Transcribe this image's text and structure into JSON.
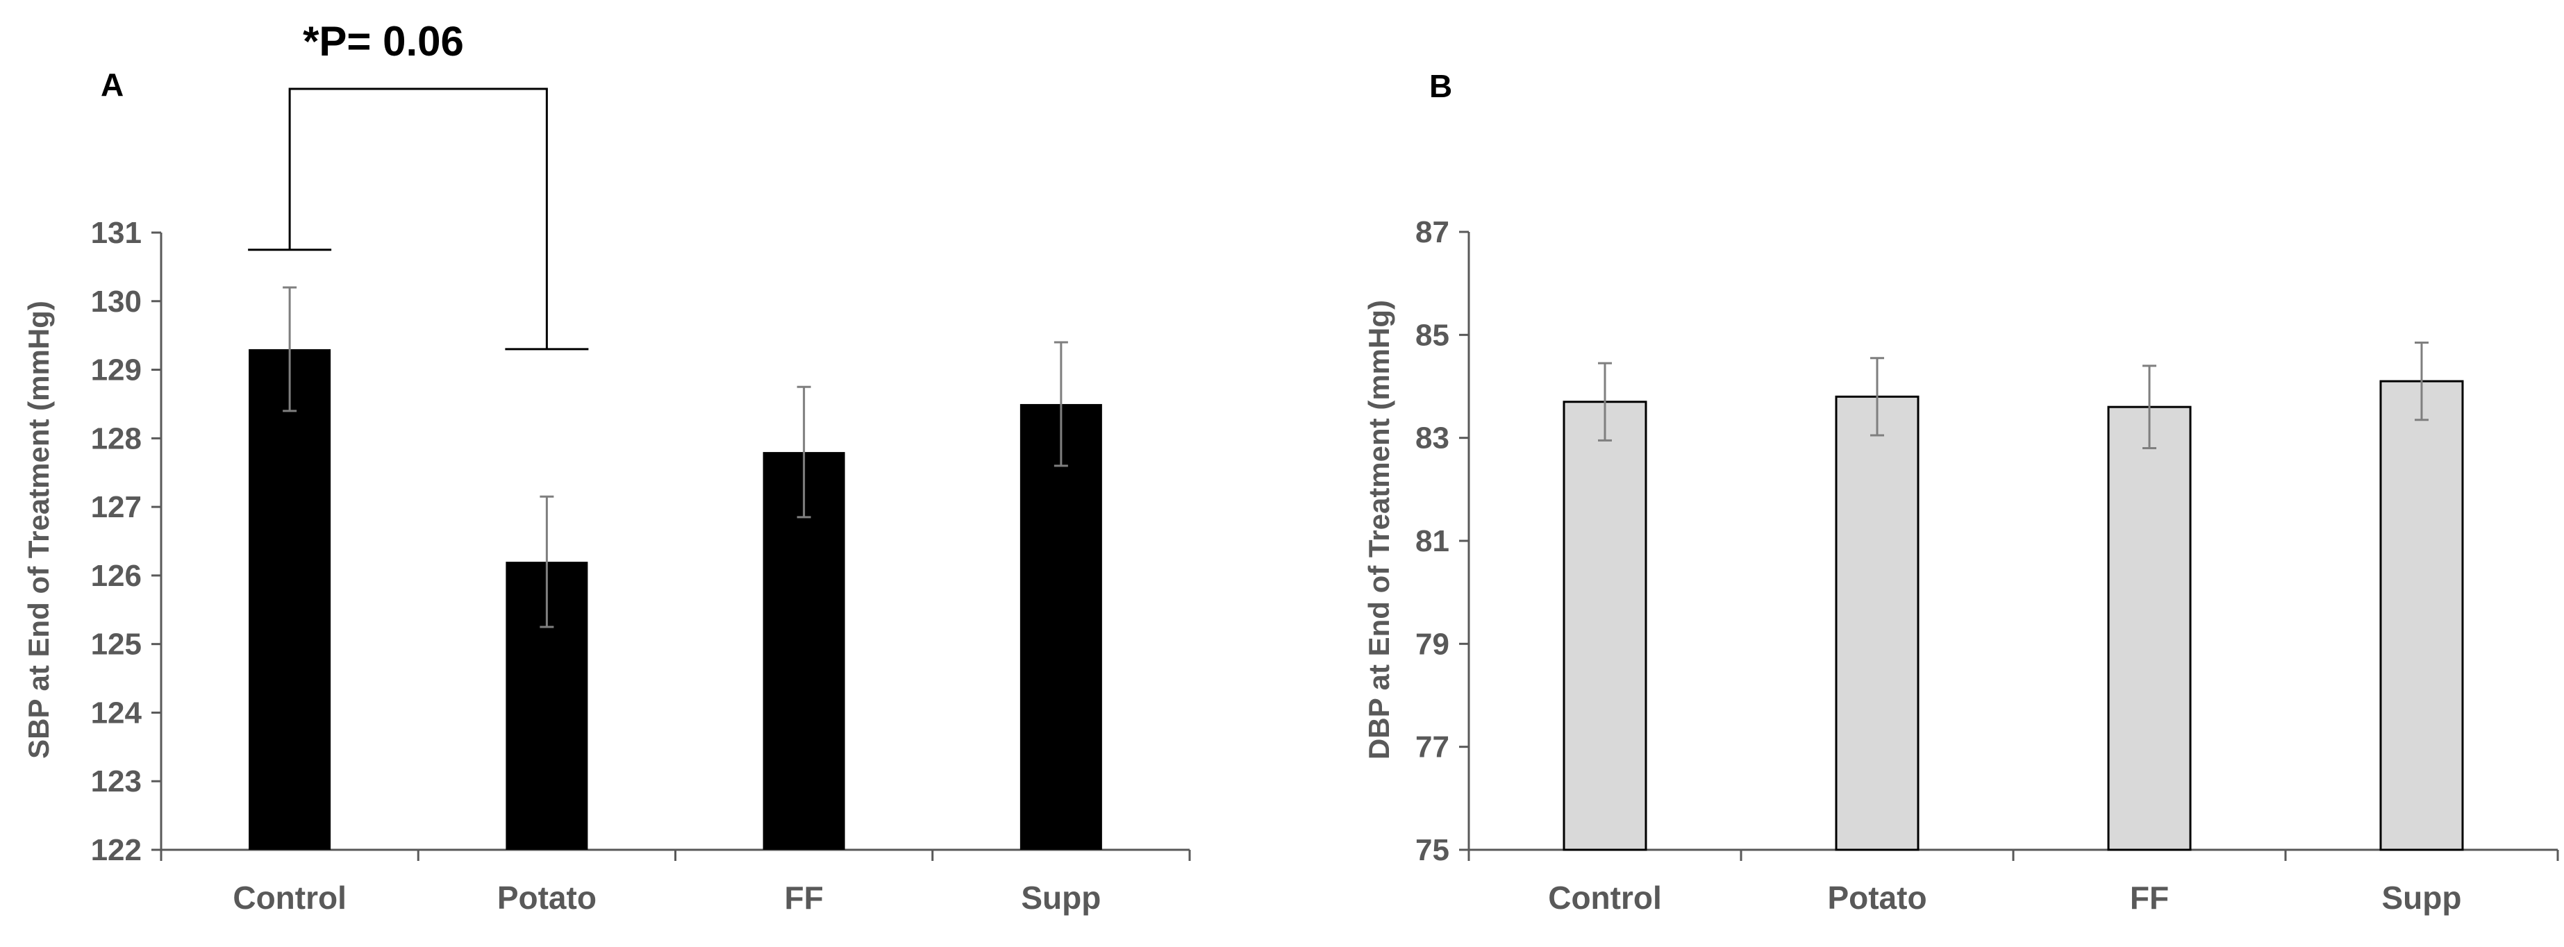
{
  "chart_data": [
    {
      "type": "bar",
      "panel_label": "A",
      "categories": [
        "Control",
        "Potato",
        "FF",
        "Supp"
      ],
      "values": [
        129.3,
        126.2,
        127.8,
        128.5
      ],
      "error": [
        0.9,
        0.95,
        0.95,
        0.9
      ],
      "ylabel": "SBP at End of Treatment (mmHg)",
      "xlabel": "",
      "ylim": [
        122,
        131
      ],
      "yticks": [
        122,
        123,
        124,
        125,
        126,
        127,
        128,
        129,
        130,
        131
      ],
      "bar_color": "#000000",
      "annotation": {
        "text": "*P= 0.06",
        "from": "Control",
        "to": "Potato",
        "from_value": 130.75,
        "to_value": 129.3
      }
    },
    {
      "type": "bar",
      "panel_label": "B",
      "categories": [
        "Control",
        "Potato",
        "FF",
        "Supp"
      ],
      "values": [
        83.7,
        83.8,
        83.6,
        84.1
      ],
      "error": [
        0.75,
        0.75,
        0.8,
        0.75
      ],
      "ylabel": "DBP  at End of Treatment (mmHg)",
      "xlabel": "",
      "ylim": [
        75,
        87
      ],
      "yticks": [
        75,
        77,
        79,
        81,
        83,
        85,
        87
      ],
      "bar_color": "#d9d9d9"
    }
  ]
}
